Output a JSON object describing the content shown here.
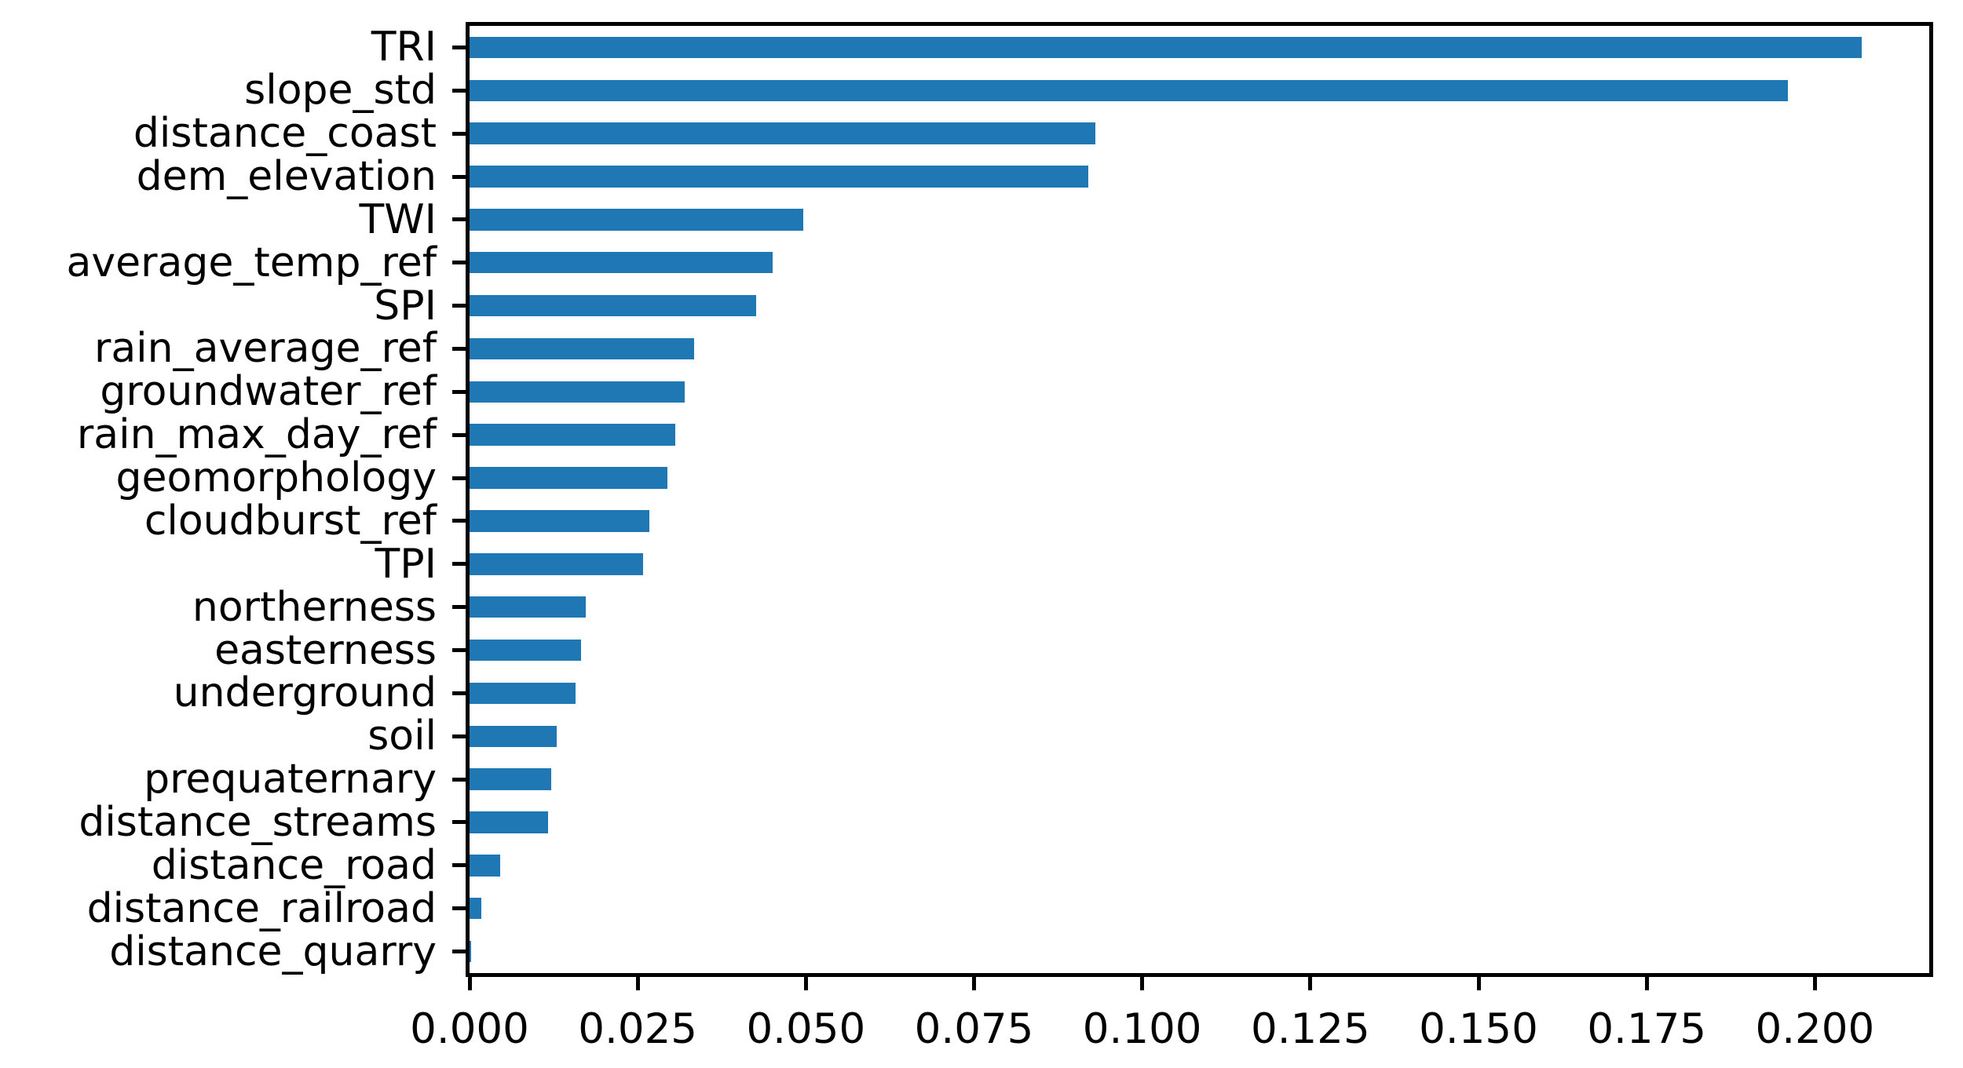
{
  "chart_data": {
    "type": "bar",
    "orientation": "horizontal",
    "title": "",
    "xlabel": "",
    "ylabel": "",
    "grid": false,
    "legend": false,
    "bar_color": "#1f77b4",
    "frame_color": "#000000",
    "xlim": [
      0,
      0.217
    ],
    "categories": [
      "TRI",
      "slope_std",
      "distance_coast",
      "dem_elevation",
      "TWI",
      "average_temp_ref",
      "SPI",
      "rain_average_ref",
      "groundwater_ref",
      "rain_max_day_ref",
      "geomorphology",
      "cloudburst_ref",
      "TPI",
      "northerness",
      "easterness",
      "underground",
      "soil",
      "prequaternary",
      "distance_streams",
      "distance_road",
      "distance_railroad",
      "distance_quarry"
    ],
    "values": [
      0.207,
      0.196,
      0.093,
      0.092,
      0.0496,
      0.045,
      0.0426,
      0.0334,
      0.032,
      0.0306,
      0.0294,
      0.0267,
      0.0258,
      0.0173,
      0.0166,
      0.0158,
      0.013,
      0.0121,
      0.0117,
      0.0046,
      0.0018,
      0.0002
    ],
    "xticks": {
      "values": [
        0.0,
        0.025,
        0.05,
        0.075,
        0.1,
        0.125,
        0.15,
        0.175,
        0.2
      ],
      "labels": [
        "0.000",
        "0.025",
        "0.050",
        "0.075",
        "0.100",
        "0.125",
        "0.150",
        "0.175",
        "0.200"
      ]
    }
  }
}
